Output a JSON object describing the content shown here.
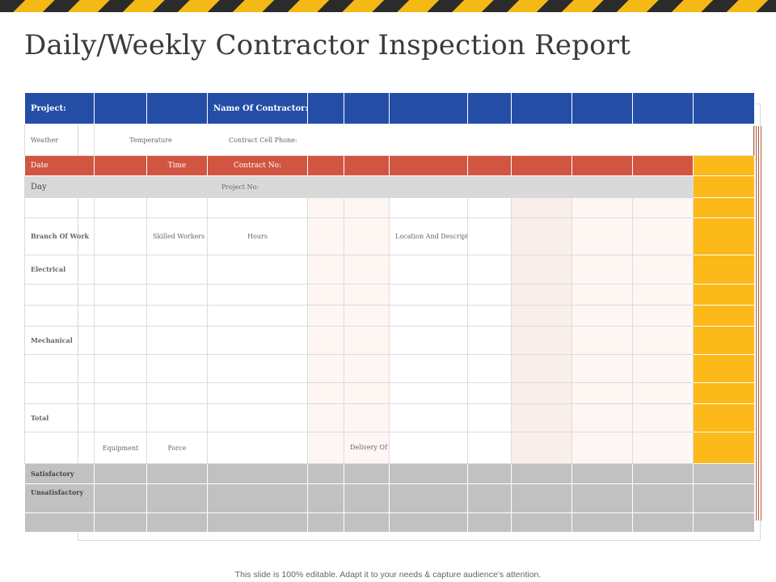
{
  "title": "Daily/Weekly Contractor Inspection Report",
  "header": {
    "project": "Project:",
    "contractor": "Name Of Contractor:"
  },
  "weather_row": {
    "weather": "Weather",
    "temperature": "Temperature",
    "phone": "Contract Cell Phone:"
  },
  "date_row": {
    "date": "Date",
    "time": "Time",
    "contract_no": "Contract No:"
  },
  "day_row": {
    "day": "Day",
    "project_no": "Project No:"
  },
  "branch_row": {
    "branch": "Branch Of Work",
    "skilled": "Skilled Workers",
    "hours": "Hours",
    "location": "Location And Description Of Work"
  },
  "sections": {
    "electrical": "Electrical",
    "mechanical": "Mechanical",
    "total": "Total"
  },
  "equipment_row": {
    "equipment": "Equipment",
    "force": "Force",
    "delivery": "Delivery Of Materials"
  },
  "ratings": {
    "satisfactory": "Satisfactory",
    "unsatisfactory": "Unsatisfactory"
  },
  "footer": "This slide is 100% editable. Adapt it to your needs & capture audience’s attention.",
  "colors": {
    "blue": "#244ea6",
    "orange": "#d15540",
    "yellow": "#fbb91a",
    "gray": "#c1c1c1",
    "light_gray": "#d9d9d9"
  }
}
